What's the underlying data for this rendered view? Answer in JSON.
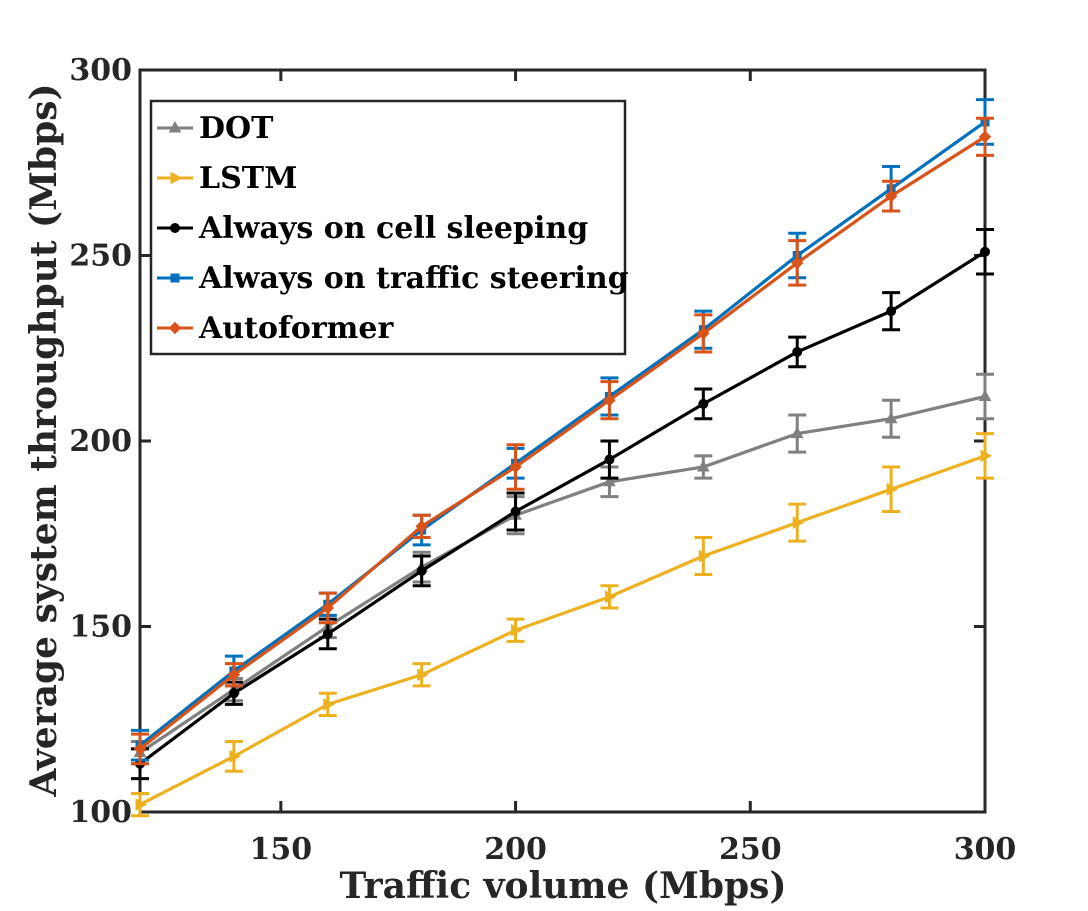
{
  "chart_data": {
    "type": "line",
    "xlabel": "Traffic volume (Mbps)",
    "ylabel": "Average system throughput (Mbps)",
    "xlim": [
      120,
      300
    ],
    "ylim": [
      100,
      300
    ],
    "xticks": [
      150,
      200,
      250,
      300
    ],
    "yticks": [
      100,
      150,
      200,
      250,
      300
    ],
    "x": [
      120,
      140,
      160,
      180,
      200,
      220,
      240,
      260,
      280,
      300
    ],
    "legend_position": "top-left",
    "grid": false,
    "series": [
      {
        "name": "DOT",
        "color": "#808080",
        "marker": "triangle-up",
        "values": [
          116,
          133,
          150,
          166,
          180,
          189,
          193,
          202,
          206,
          212
        ],
        "error": [
          3,
          3,
          3,
          4,
          5,
          4,
          3,
          5,
          5,
          6
        ]
      },
      {
        "name": "LSTM",
        "color": "#EDB120",
        "marker": "triangle-right",
        "values": [
          102,
          115,
          129,
          137,
          149,
          158,
          169,
          178,
          187,
          196
        ],
        "error": [
          3,
          4,
          3,
          3,
          3,
          3,
          5,
          5,
          6,
          6
        ]
      },
      {
        "name": "Always on cell sleeping",
        "color": "#000000",
        "marker": "circle",
        "values": [
          113,
          132,
          148,
          165,
          181,
          195,
          210,
          224,
          235,
          251
        ],
        "error": [
          4,
          3,
          4,
          4,
          5,
          5,
          4,
          4,
          5,
          6
        ]
      },
      {
        "name": "Always on traffic steering",
        "color": "#0072BD",
        "marker": "square",
        "values": [
          118,
          138,
          156,
          176,
          194,
          212,
          230,
          250,
          268,
          286
        ],
        "error": [
          4,
          4,
          3,
          4,
          4,
          5,
          5,
          6,
          6,
          6
        ]
      },
      {
        "name": "Autoformer",
        "color": "#D95319",
        "marker": "diamond",
        "values": [
          117,
          137,
          155,
          177,
          193,
          211,
          229,
          248,
          266,
          282
        ],
        "error": [
          4,
          3,
          4,
          3,
          6,
          5,
          5,
          6,
          4,
          5
        ]
      }
    ]
  }
}
